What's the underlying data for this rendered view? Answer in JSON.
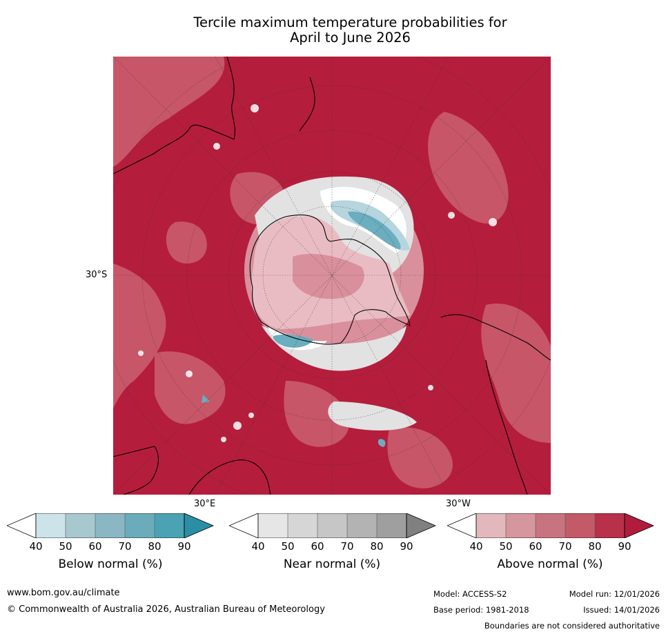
{
  "title_line1": "Tercile maximum temperature probabilities for",
  "title_line2": "April to June 2026",
  "map": {
    "lat_label": "30°S",
    "lon_label_east": "30°E",
    "lon_label_west": "30°W",
    "colors": {
      "above_dark": "#b51d3c",
      "above_mid": "#c85a6c",
      "above_light": "#d9909c",
      "above_pale": "#e9bcc3",
      "near": "#e2e2e2",
      "below": "#6aaec0",
      "below_pale": "#b6d5de",
      "white": "#ffffff"
    }
  },
  "colorbars": [
    {
      "label": "Below normal (%)",
      "ticks": [
        "40",
        "50",
        "60",
        "70",
        "80",
        "90"
      ],
      "colors": [
        "#ffffff",
        "#cde3ea",
        "#a8c8cf",
        "#8ab7c3",
        "#6bacbb",
        "#4aa2b3",
        "#2a8ea4"
      ]
    },
    {
      "label": "Near normal (%)",
      "ticks": [
        "40",
        "50",
        "60",
        "70",
        "80",
        "90"
      ],
      "colors": [
        "#ffffff",
        "#e6e6e6",
        "#d6d6d6",
        "#c6c6c6",
        "#b3b3b3",
        "#9f9f9f",
        "#808080"
      ]
    },
    {
      "label": "Above normal (%)",
      "ticks": [
        "40",
        "50",
        "60",
        "70",
        "80",
        "90"
      ],
      "colors": [
        "#ffffff",
        "#e2b8bd",
        "#d5969e",
        "#c87480",
        "#c25a68",
        "#b8304a",
        "#b11c3c"
      ]
    }
  ],
  "footer": {
    "website": "www.bom.gov.au/climate",
    "copyright": "© Commonwealth of Australia 2026, Australian Bureau of Meteorology",
    "model": "Model: ACCESS-S2",
    "model_run": "Model run: 12/01/2026",
    "base_period": "Base period: 1981-2018",
    "issued": "Issued: 14/01/2026",
    "disclaimer": "Boundaries are not considered authoritative"
  }
}
